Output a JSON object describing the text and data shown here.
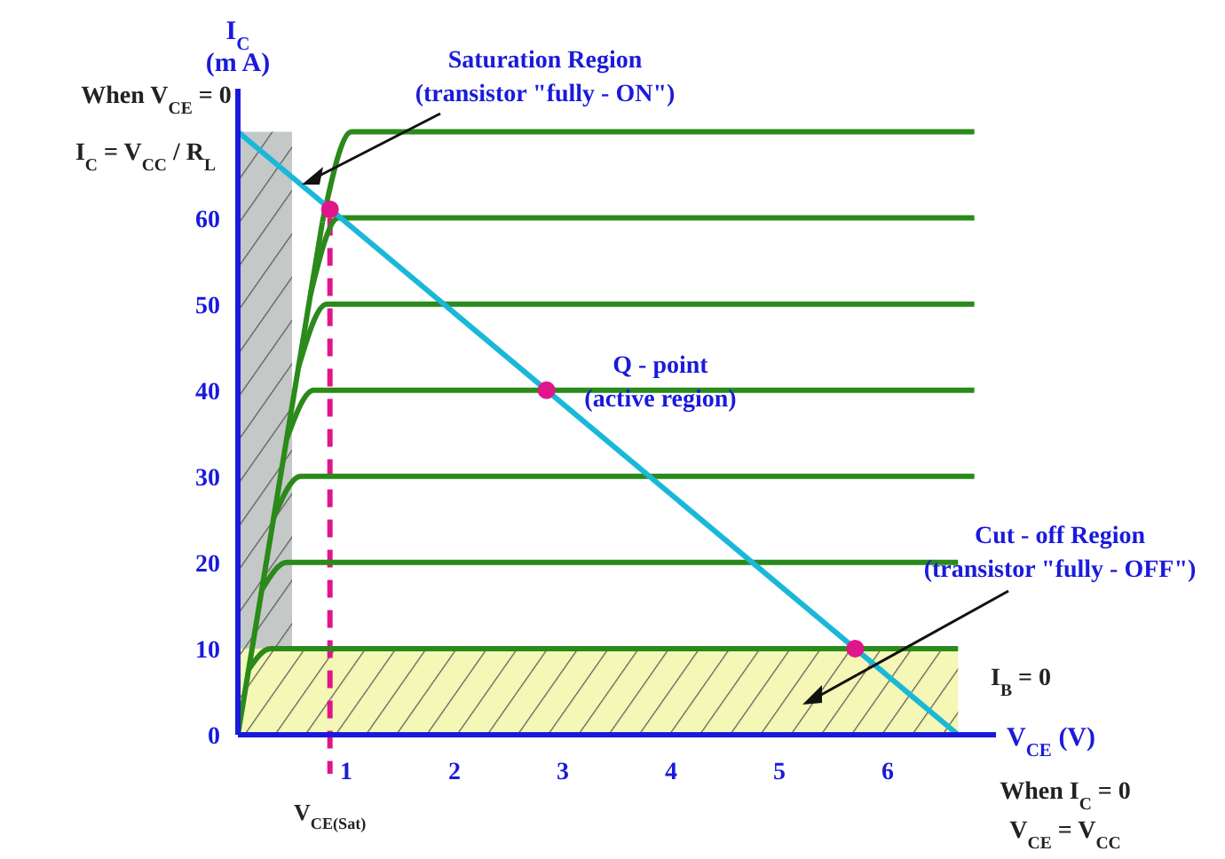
{
  "chart_data": {
    "type": "line",
    "xlabel": "V$_{CE}$ (V)",
    "ylabel": "I$_{C}$\n(m A)",
    "xlim": [
      0,
      7
    ],
    "ylim": [
      0,
      75
    ],
    "xticks": [
      1,
      2,
      3,
      4,
      5,
      6
    ],
    "yticks": [
      0,
      10,
      20,
      30,
      40,
      50,
      60
    ],
    "grid": false,
    "line_style": "solid",
    "series": [
      {
        "color": "#2a8a1a",
        "x": [
          0,
          0.78
        ],
        "values": [
          0,
          59.5
        ]
      },
      {
        "color": "#2a8a1a",
        "x": [
          0.1,
          0.3,
          6.65
        ],
        "values": [
          7.6,
          10,
          10
        ]
      },
      {
        "color": "#2a8a1a",
        "x": [
          0.22,
          0.45,
          6.65
        ],
        "values": [
          16.8,
          20,
          20
        ]
      },
      {
        "color": "#2a8a1a",
        "x": [
          0.33,
          0.58,
          6.8
        ],
        "values": [
          25.2,
          30,
          30
        ]
      },
      {
        "color": "#2a8a1a",
        "x": [
          0.45,
          0.7,
          6.8
        ],
        "values": [
          34.3,
          40,
          40
        ]
      },
      {
        "color": "#2a8a1a",
        "x": [
          0.56,
          0.82,
          6.8
        ],
        "values": [
          42.7,
          50,
          50
        ]
      },
      {
        "color": "#2a8a1a",
        "x": [
          0.67,
          0.93,
          6.8
        ],
        "values": [
          51.1,
          60,
          60
        ]
      },
      {
        "color": "#2a8a1a",
        "x": [
          0.78,
          1.05,
          6.8
        ],
        "values": [
          59.5,
          70,
          70
        ]
      },
      {
        "color": "#1ab8d8",
        "x": [
          0,
          6.65
        ],
        "values": [
          70,
          0
        ]
      },
      {
        "type": "scatter",
        "marker": "circle",
        "color": "#e0158a",
        "x": [
          0.85,
          2.85,
          5.7
        ],
        "values": [
          61,
          40,
          10
        ]
      }
    ],
    "bands": [
      {
        "axis": "x",
        "from": 0,
        "to": 0.5,
        "color": "#c4c8c6"
      },
      {
        "axis": "y",
        "from": 0,
        "to": 10,
        "color": "#f4f7b5"
      }
    ],
    "ref_lines": [
      {
        "axis": "x",
        "value": 0.85,
        "label": "V$_{CE(Sat)}$",
        "color": "#e0158a",
        "line_style": "dashed"
      }
    ],
    "annotations": [
      "When V$_{CE}$ = 0",
      "I$_{C}$ = V$_{CC}$ / R$_{L}$",
      "Saturation Region\n(transistor \"fully - ON\")",
      "Q - point\n(active region)",
      "Cut - off Region\n(transistor \"fully - OFF\")",
      "I$_{B}$ = 0",
      "When I$_{C}$ = 0",
      "V$_{CE}$ = V$_{CC}$"
    ]
  }
}
